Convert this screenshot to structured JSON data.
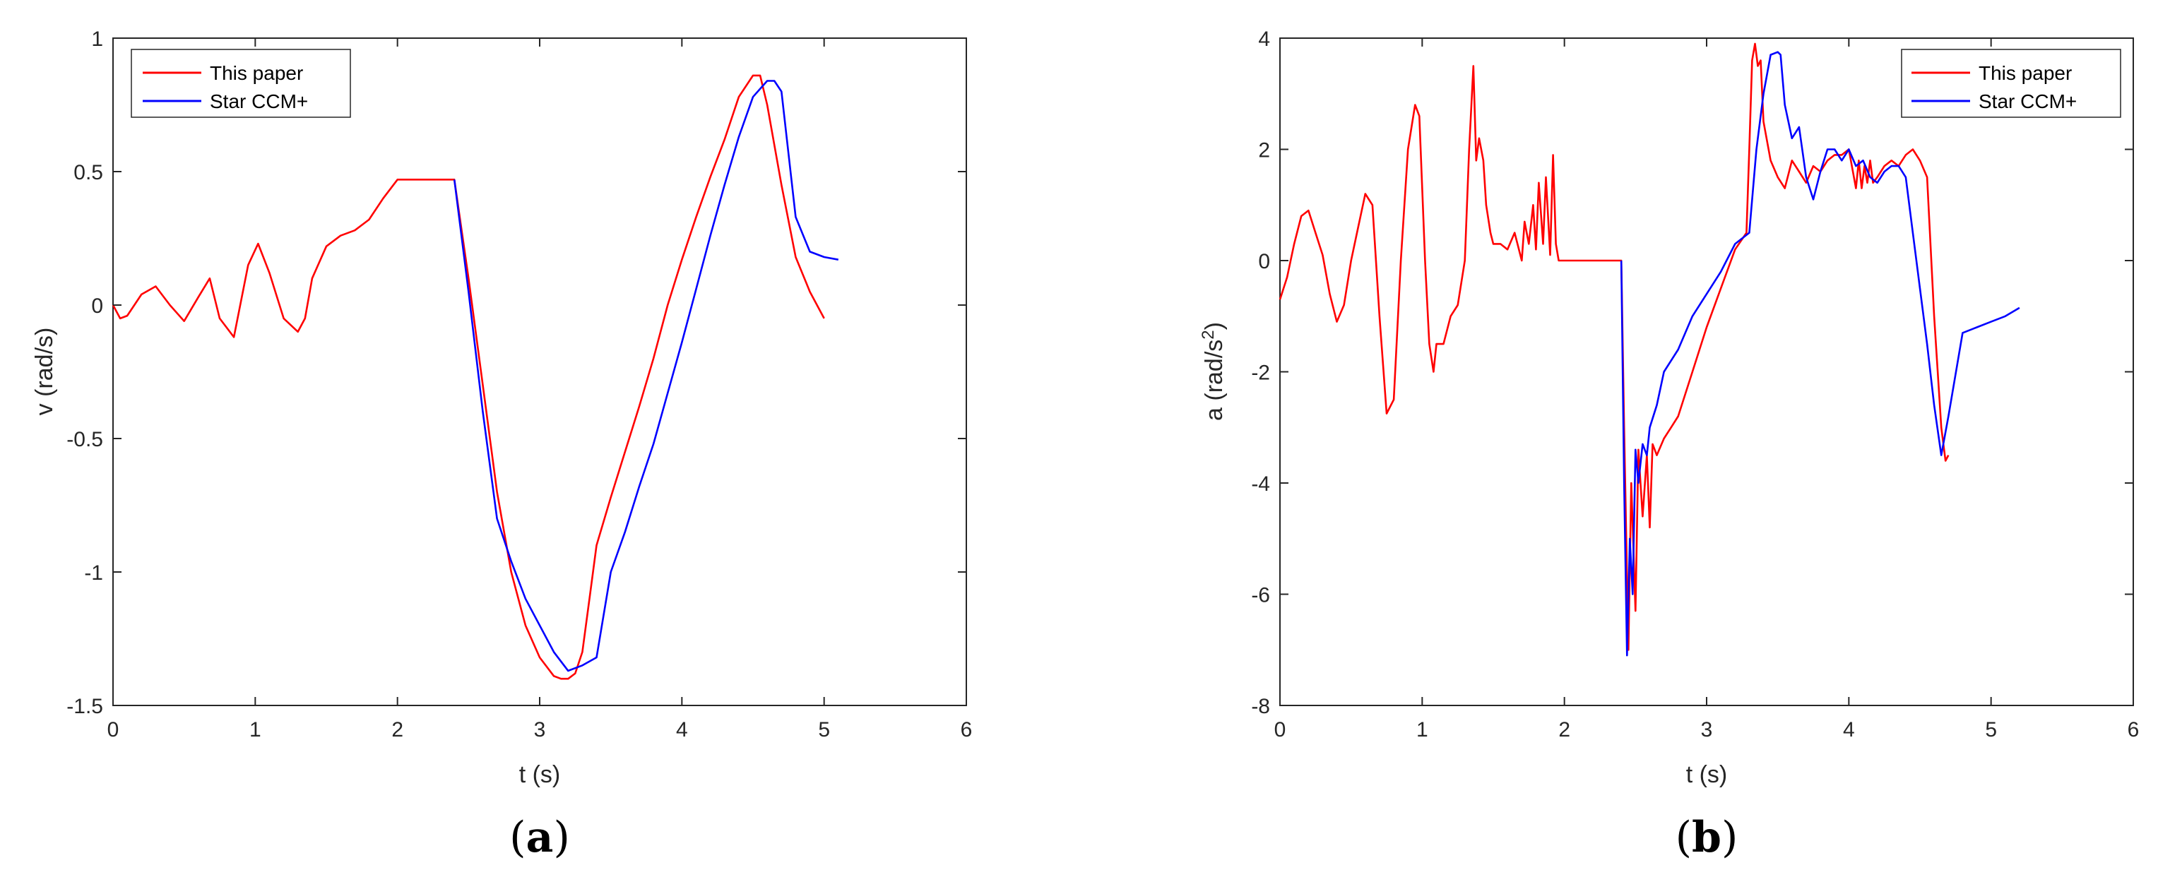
{
  "chart_data": [
    {
      "type": "line",
      "caption": {
        "open": "(",
        "letter": "a",
        "close": ")"
      },
      "xlabel": "t (s)",
      "ylabel": "v (rad/s)",
      "xlim": [
        0,
        6
      ],
      "ylim": [
        -1.5,
        1
      ],
      "xticks": [
        0,
        1,
        2,
        3,
        4,
        5,
        6
      ],
      "yticks": [
        1,
        0.5,
        0,
        -0.5,
        -1,
        -1.5
      ],
      "xtick_labels": [
        "0",
        "1",
        "2",
        "3",
        "4",
        "5",
        "6"
      ],
      "ytick_labels": [
        "1",
        "0.5",
        "0",
        "-0.5",
        "-1",
        "-1.5"
      ],
      "grid": false,
      "legend_position": "top-left",
      "series": [
        {
          "name": "This paper",
          "color": "#ff0000",
          "x": [
            0,
            0.05,
            0.1,
            0.2,
            0.3,
            0.4,
            0.5,
            0.6,
            0.68,
            0.75,
            0.85,
            0.95,
            1.02,
            1.1,
            1.2,
            1.3,
            1.35,
            1.4,
            1.5,
            1.6,
            1.7,
            1.8,
            1.9,
            2.0,
            2.1,
            2.2,
            2.3,
            2.4,
            2.5,
            2.6,
            2.7,
            2.8,
            2.9,
            3.0,
            3.1,
            3.15,
            3.2,
            3.25,
            3.3,
            3.35,
            3.4,
            3.5,
            3.6,
            3.7,
            3.8,
            3.9,
            4.0,
            4.1,
            4.2,
            4.3,
            4.4,
            4.5,
            4.55,
            4.6,
            4.7,
            4.8,
            4.9,
            5.0
          ],
          "y": [
            0,
            -0.05,
            -0.04,
            0.04,
            0.07,
            0.0,
            -0.06,
            0.03,
            0.1,
            -0.05,
            -0.12,
            0.15,
            0.23,
            0.12,
            -0.05,
            -0.1,
            -0.05,
            0.1,
            0.22,
            0.26,
            0.28,
            0.32,
            0.4,
            0.47,
            0.47,
            0.47,
            0.47,
            0.47,
            0.1,
            -0.3,
            -0.7,
            -1.0,
            -1.2,
            -1.32,
            -1.39,
            -1.4,
            -1.4,
            -1.38,
            -1.3,
            -1.1,
            -0.9,
            -0.72,
            -0.55,
            -0.38,
            -0.2,
            0.0,
            0.17,
            0.33,
            0.48,
            0.62,
            0.78,
            0.86,
            0.86,
            0.75,
            0.45,
            0.18,
            0.05,
            -0.05
          ]
        },
        {
          "name": "Star CCM+",
          "color": "#0000ff",
          "x": [
            2.4,
            2.5,
            2.6,
            2.7,
            2.8,
            2.9,
            3.0,
            3.1,
            3.2,
            3.3,
            3.4,
            3.5,
            3.6,
            3.7,
            3.8,
            3.9,
            4.0,
            4.1,
            4.2,
            4.3,
            4.4,
            4.5,
            4.6,
            4.65,
            4.7,
            4.8,
            4.9,
            5.0,
            5.1
          ],
          "y": [
            0.47,
            0.05,
            -0.4,
            -0.8,
            -0.96,
            -1.1,
            -1.2,
            -1.3,
            -1.37,
            -1.35,
            -1.32,
            -1.0,
            -0.85,
            -0.68,
            -0.52,
            -0.33,
            -0.14,
            0.06,
            0.26,
            0.45,
            0.63,
            0.78,
            0.84,
            0.84,
            0.8,
            0.33,
            0.2,
            0.18,
            0.17
          ]
        }
      ]
    },
    {
      "type": "line",
      "caption": {
        "open": "(",
        "letter": "b",
        "close": ")"
      },
      "xlabel": "t (s)",
      "ylabel": "a (rad/s",
      "ylabel_sup": "2",
      "ylabel_close": ")",
      "xlim": [
        0,
        6
      ],
      "ylim": [
        -8,
        4
      ],
      "xticks": [
        0,
        1,
        2,
        3,
        4,
        5,
        6
      ],
      "yticks": [
        4,
        2,
        0,
        -2,
        -4,
        -6,
        -8
      ],
      "xtick_labels": [
        "0",
        "1",
        "2",
        "3",
        "4",
        "5",
        "6"
      ],
      "ytick_labels": [
        "4",
        "2",
        "0",
        "-2",
        "-4",
        "-6",
        "-8"
      ],
      "grid": false,
      "legend_position": "top-right",
      "series": [
        {
          "name": "This paper",
          "color": "#ff0000",
          "x": [
            0,
            0.05,
            0.1,
            0.15,
            0.2,
            0.25,
            0.3,
            0.35,
            0.4,
            0.45,
            0.5,
            0.55,
            0.6,
            0.65,
            0.7,
            0.75,
            0.8,
            0.85,
            0.9,
            0.95,
            0.98,
            1.02,
            1.05,
            1.08,
            1.1,
            1.15,
            1.2,
            1.25,
            1.3,
            1.33,
            1.36,
            1.38,
            1.4,
            1.43,
            1.45,
            1.48,
            1.5,
            1.55,
            1.6,
            1.65,
            1.7,
            1.72,
            1.75,
            1.78,
            1.8,
            1.82,
            1.85,
            1.87,
            1.9,
            1.92,
            1.94,
            1.96,
            2.0,
            2.1,
            2.2,
            2.3,
            2.4,
            2.42,
            2.45,
            2.47,
            2.5,
            2.52,
            2.55,
            2.58,
            2.6,
            2.62,
            2.65,
            2.7,
            2.75,
            2.8,
            2.9,
            3.0,
            3.1,
            3.2,
            3.28,
            3.3,
            3.32,
            3.34,
            3.36,
            3.38,
            3.4,
            3.45,
            3.5,
            3.55,
            3.6,
            3.65,
            3.7,
            3.75,
            3.8,
            3.85,
            3.9,
            3.95,
            4.0,
            4.05,
            4.07,
            4.09,
            4.11,
            4.13,
            4.15,
            4.17,
            4.2,
            4.25,
            4.3,
            4.35,
            4.4,
            4.45,
            4.5,
            4.55,
            4.6,
            4.65,
            4.68,
            4.7
          ],
          "y": [
            -0.7,
            -0.3,
            0.3,
            0.8,
            0.9,
            0.5,
            0.1,
            -0.6,
            -1.1,
            -0.8,
            0.0,
            0.6,
            1.2,
            1.0,
            -1.0,
            -2.75,
            -2.5,
            0.0,
            2.0,
            2.8,
            2.6,
            0.0,
            -1.5,
            -2.0,
            -1.5,
            -1.5,
            -1.0,
            -0.8,
            0.0,
            2.0,
            3.5,
            1.8,
            2.2,
            1.8,
            1.0,
            0.5,
            0.3,
            0.3,
            0.2,
            0.5,
            0.0,
            0.7,
            0.3,
            1.0,
            0.2,
            1.4,
            0.3,
            1.5,
            0.1,
            1.9,
            0.3,
            0.0,
            0.0,
            0.0,
            0.0,
            0.0,
            0.0,
            -3.0,
            -7.0,
            -4.0,
            -6.3,
            -3.4,
            -4.6,
            -3.5,
            -4.8,
            -3.3,
            -3.5,
            -3.2,
            -3.0,
            -2.8,
            -2.0,
            -1.2,
            -0.5,
            0.2,
            0.5,
            2.0,
            3.6,
            3.9,
            3.5,
            3.6,
            2.5,
            1.8,
            1.5,
            1.3,
            1.8,
            1.6,
            1.4,
            1.7,
            1.6,
            1.8,
            1.9,
            1.9,
            2.0,
            1.3,
            1.8,
            1.3,
            1.7,
            1.4,
            1.8,
            1.4,
            1.5,
            1.7,
            1.8,
            1.7,
            1.9,
            2.0,
            1.8,
            1.5,
            -1.0,
            -3.0,
            -3.6,
            -3.5
          ]
        },
        {
          "name": "Star CCM+",
          "color": "#0000ff",
          "x": [
            2.4,
            2.42,
            2.44,
            2.46,
            2.48,
            2.5,
            2.52,
            2.55,
            2.58,
            2.6,
            2.65,
            2.7,
            2.8,
            2.9,
            3.0,
            3.1,
            3.2,
            3.3,
            3.35,
            3.4,
            3.45,
            3.5,
            3.52,
            3.55,
            3.6,
            3.65,
            3.7,
            3.75,
            3.8,
            3.85,
            3.9,
            3.95,
            4.0,
            4.05,
            4.1,
            4.15,
            4.2,
            4.25,
            4.3,
            4.35,
            4.4,
            4.45,
            4.5,
            4.55,
            4.6,
            4.65,
            4.7,
            4.8,
            4.9,
            5.0,
            5.1,
            5.2
          ],
          "y": [
            0.0,
            -4.0,
            -7.1,
            -5.0,
            -6.0,
            -3.4,
            -4.0,
            -3.3,
            -3.5,
            -3.0,
            -2.6,
            -2.0,
            -1.6,
            -1.0,
            -0.6,
            -0.2,
            0.3,
            0.5,
            2.0,
            3.0,
            3.7,
            3.75,
            3.7,
            2.8,
            2.2,
            2.4,
            1.5,
            1.1,
            1.6,
            2.0,
            2.0,
            1.8,
            2.0,
            1.7,
            1.8,
            1.5,
            1.4,
            1.6,
            1.7,
            1.7,
            1.5,
            0.5,
            -0.5,
            -1.5,
            -2.6,
            -3.5,
            -2.8,
            -1.3,
            -1.2,
            -1.1,
            -1.0,
            -0.85
          ]
        }
      ]
    }
  ]
}
